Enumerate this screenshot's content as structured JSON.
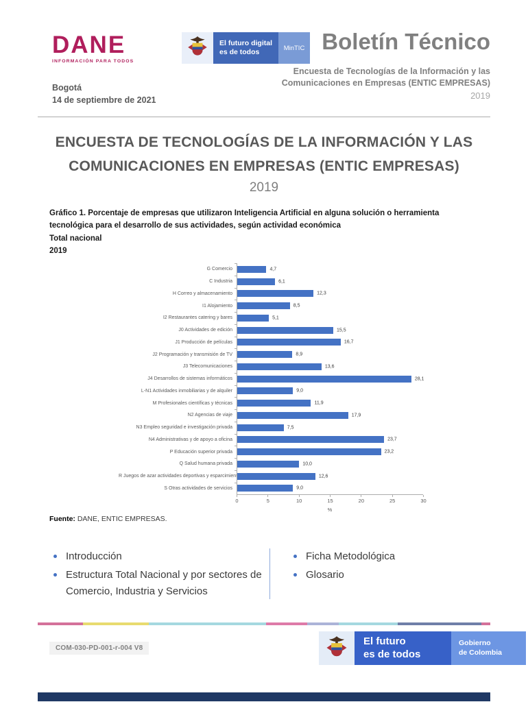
{
  "header": {
    "dane": {
      "name": "DANE",
      "tagline": "INFORMACIÓN PARA TODOS",
      "color": "#B01E5C"
    },
    "mintic": {
      "slogan_line1": "El futuro digital",
      "slogan_line2": "es de todos",
      "brand": "MinTIC"
    },
    "doc_type": "Boletín Técnico",
    "survey_title": "Encuesta de Tecnologías de la Información y las Comunicaciones en Empresas (ENTIC EMPRESAS)",
    "survey_year": "2019",
    "city": "Bogotá",
    "date": "14 de septiembre de 2021"
  },
  "title": {
    "main": "ENCUESTA DE TECNOLOGÍAS DE LA INFORMACIÓN Y LAS COMUNICACIONES EN EMPRESAS (ENTIC EMPRESAS)",
    "year": "2019"
  },
  "chart_heading": {
    "caption": "Gráfico 1. Porcentaje de empresas que utilizaron Inteligencia Artificial en alguna solución o herramienta tecnológica para el desarrollo de sus actividades, según actividad económica",
    "scope": "Total nacional",
    "year": "2019"
  },
  "chart_data": {
    "type": "bar",
    "orientation": "horizontal",
    "title": "Gráfico 1. Porcentaje de empresas que utilizaron Inteligencia Artificial en alguna solución o herramienta tecnológica para el desarrollo de sus actividades, según actividad económica",
    "subtitle": "Total nacional, 2019",
    "categories": [
      "G Comercio",
      "C Industria",
      "H Correo y almacenamiento",
      "I1 Alojamiento",
      "I2 Restaurantes catering y bares",
      "J0 Actividades de edición",
      "J1 Producción de películas",
      "J2 Programación y transmisión de TV",
      "J3 Telecomunicaciones",
      "J4 Desarrollos de sistemas informáticos",
      "L-N1 Actividades inmobiliarias y de alquiler",
      "M Profesionales científicas y técnicas",
      "N2 Agencias de viaje",
      "N3 Empleo seguridad e investigación privada",
      "N4 Administrativas y de apoyo a oficina",
      "P Educación superior privada",
      "Q Salud humana privada",
      "R Juegos de azar actividades deportivas y esparcimiento",
      "S Otras actividades de servicios"
    ],
    "values": [
      4.7,
      6.1,
      12.3,
      8.5,
      5.1,
      15.5,
      16.7,
      8.9,
      13.6,
      28.1,
      9.0,
      11.9,
      17.9,
      7.5,
      23.7,
      23.2,
      10.0,
      12.6,
      9.0
    ],
    "value_labels": [
      "4,7",
      "6,1",
      "12,3",
      "8,5",
      "5,1",
      "15,5",
      "16,7",
      "8,9",
      "13,6",
      "28,1",
      "9,0",
      "11,9",
      "17,9",
      "7,5",
      "23,7",
      "23,2",
      "10,0",
      "12,6",
      "9,0"
    ],
    "xlabel": "%",
    "xlim": [
      0,
      30
    ],
    "xticks": [
      0,
      5,
      10,
      15,
      20,
      25,
      30
    ],
    "bar_color": "#4472C4",
    "grid": false,
    "legend": null
  },
  "source": {
    "label": "Fuente:",
    "text": "DANE, ENTIC EMPRESAS."
  },
  "toc": {
    "bullet_color": "#4472C4",
    "left": [
      {
        "label": "Introducción"
      },
      {
        "label": "Estructura Total Nacional y por sectores de Comercio, Industria y Servicios"
      }
    ],
    "right": [
      {
        "label": "Ficha Metodológica"
      },
      {
        "label": "Glosario"
      }
    ]
  },
  "footer": {
    "strip_segments": [
      {
        "color": "#D4719A",
        "width": 10
      },
      {
        "color": "#E8DB6F",
        "width": 14.5
      },
      {
        "color": "#A5D8E0",
        "width": 26
      },
      {
        "color": "#DE7BA8",
        "width": 9
      },
      {
        "color": "#ACB4D8",
        "width": 7
      },
      {
        "color": "#A5D8E0",
        "width": 13
      },
      {
        "color": "#6F7FA8",
        "width": 18.5
      },
      {
        "color": "#D4719A",
        "width": 2
      }
    ],
    "doc_code": "COM-030-PD-001-r-004 V8",
    "gov_logo": {
      "line1": "El futuro",
      "line2": "es de todos",
      "line3": "Gobierno",
      "line4": "de Colombia"
    },
    "bottom_bar_color": "#1F3864"
  }
}
